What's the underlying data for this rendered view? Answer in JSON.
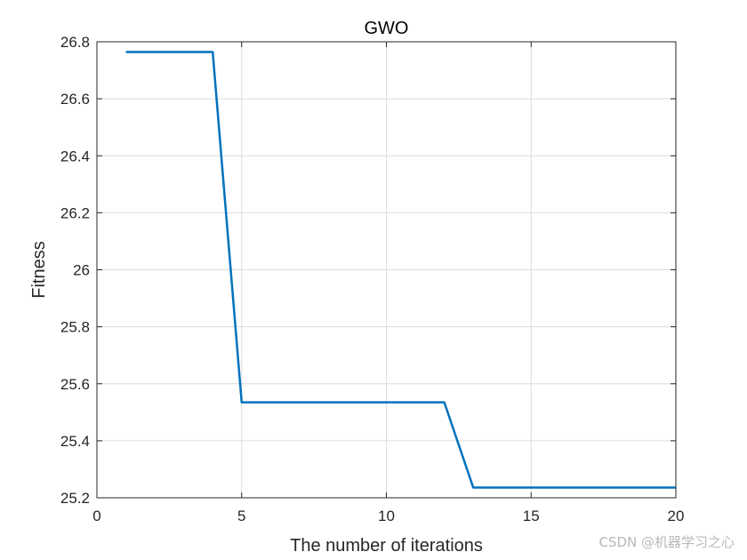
{
  "chart_data": {
    "type": "line",
    "title": "GWO",
    "xlabel": "The number of iterations",
    "ylabel": "Fitness",
    "xlim": [
      0,
      20
    ],
    "ylim": [
      25.2,
      26.8
    ],
    "xticks": [
      0,
      5,
      10,
      15,
      20
    ],
    "xtick_labels": [
      "0",
      "5",
      "10",
      "15",
      "20"
    ],
    "yticks": [
      25.2,
      25.4,
      25.6,
      25.8,
      26.0,
      26.2,
      26.4,
      26.6,
      26.8
    ],
    "ytick_labels": [
      "25.2",
      "25.4",
      "25.6",
      "25.8",
      "26",
      "26.2",
      "26.4",
      "26.6",
      "26.8"
    ],
    "grid": true,
    "legend": "none",
    "series": [
      {
        "color": "#0072BD",
        "x": [
          1,
          2,
          3,
          4,
          5,
          6,
          7,
          8,
          9,
          10,
          11,
          12,
          13,
          14,
          15,
          16,
          17,
          18,
          19,
          20
        ],
        "y": [
          26.764,
          26.764,
          26.764,
          26.764,
          25.535,
          25.535,
          25.535,
          25.535,
          25.535,
          25.535,
          25.535,
          25.535,
          25.236,
          25.236,
          25.236,
          25.236,
          25.236,
          25.236,
          25.236,
          25.236
        ]
      }
    ]
  },
  "watermark": "CSDN @机器学习之心"
}
